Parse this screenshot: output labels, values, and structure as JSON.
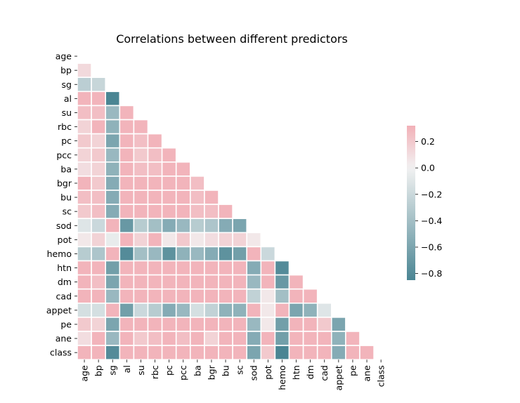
{
  "chart_data": {
    "type": "heatmap",
    "title": "Correlations between different predictors",
    "variables": [
      "age",
      "bp",
      "sg",
      "al",
      "su",
      "rbc",
      "pc",
      "pcc",
      "ba",
      "bgr",
      "bu",
      "sc",
      "sod",
      "pot",
      "hemo",
      "htn",
      "dm",
      "cad",
      "appet",
      "pe",
      "ane",
      "class"
    ],
    "mask": "upper triangle including diagonal",
    "colormap": {
      "negative": "#4a8593",
      "zero": "#f2f2f2",
      "positive": "#f2b0b7"
    },
    "value_range": [
      -0.85,
      0.32
    ],
    "colorbar_ticks": [
      "0.2",
      "0.0",
      "−0.2",
      "−0.4",
      "−0.6",
      "−0.8"
    ],
    "colorbar_tick_values": [
      0.2,
      0.0,
      -0.2,
      -0.4,
      -0.6,
      -0.8
    ],
    "rows": [
      [],
      [
        0.12
      ],
      [
        -0.28,
        -0.22
      ],
      [
        0.3,
        0.3,
        -0.85
      ],
      [
        0.25,
        0.25,
        -0.45,
        0.3
      ],
      [
        0.15,
        0.3,
        -0.5,
        0.3,
        0.3
      ],
      [
        0.2,
        0.15,
        -0.6,
        0.3,
        0.25,
        0.3
      ],
      [
        0.15,
        0.2,
        -0.45,
        0.3,
        0.2,
        0.25,
        0.3
      ],
      [
        0.1,
        0.15,
        -0.5,
        0.3,
        0.25,
        0.25,
        0.3,
        0.3
      ],
      [
        0.3,
        0.2,
        -0.55,
        0.3,
        0.3,
        0.3,
        0.3,
        0.3,
        0.25
      ],
      [
        0.25,
        0.25,
        -0.55,
        0.3,
        0.3,
        0.3,
        0.3,
        0.3,
        0.25,
        0.3
      ],
      [
        0.2,
        0.25,
        -0.55,
        0.3,
        0.3,
        0.3,
        0.3,
        0.3,
        0.25,
        0.25,
        0.3
      ],
      [
        -0.1,
        -0.2,
        0.3,
        -0.7,
        -0.3,
        -0.4,
        -0.55,
        -0.45,
        -0.3,
        -0.35,
        -0.55,
        -0.6
      ],
      [
        0.05,
        0.15,
        -0.05,
        0.3,
        0.15,
        0.3,
        0.05,
        0.2,
        0.05,
        0.1,
        0.15,
        0.15,
        0.05
      ],
      [
        -0.3,
        -0.35,
        0.3,
        -0.8,
        -0.4,
        -0.45,
        -0.75,
        -0.5,
        -0.45,
        -0.55,
        -0.75,
        -0.65,
        0.3,
        -0.2
      ],
      [
        0.3,
        0.3,
        -0.65,
        0.3,
        0.3,
        0.3,
        0.3,
        0.3,
        0.3,
        0.3,
        0.3,
        0.3,
        -0.55,
        0.3,
        -0.8
      ],
      [
        0.3,
        0.25,
        -0.6,
        0.3,
        0.3,
        0.3,
        0.3,
        0.3,
        0.3,
        0.3,
        0.3,
        0.3,
        -0.45,
        0.3,
        -0.7,
        0.3
      ],
      [
        0.3,
        0.3,
        -0.45,
        0.3,
        0.3,
        0.3,
        0.3,
        0.3,
        0.3,
        0.3,
        0.3,
        0.3,
        -0.25,
        0.05,
        -0.4,
        0.3,
        0.3
      ],
      [
        -0.15,
        -0.15,
        0.3,
        -0.65,
        -0.2,
        -0.3,
        -0.55,
        -0.45,
        -0.15,
        -0.25,
        -0.5,
        -0.5,
        0.3,
        0.05,
        0.3,
        -0.6,
        -0.5,
        -0.1
      ],
      [
        0.2,
        0.15,
        -0.6,
        0.3,
        0.3,
        0.3,
        0.3,
        0.3,
        0.3,
        0.3,
        0.3,
        0.3,
        -0.45,
        0.05,
        -0.65,
        0.3,
        0.3,
        0.2,
        -0.6
      ],
      [
        0.1,
        0.3,
        -0.45,
        0.3,
        0.2,
        0.25,
        0.3,
        0.25,
        0.3,
        0.15,
        0.3,
        0.3,
        -0.55,
        0.3,
        -0.65,
        0.3,
        0.3,
        0.3,
        -0.5,
        0.3
      ],
      [
        0.3,
        0.3,
        -0.8,
        0.3,
        0.3,
        0.3,
        0.3,
        0.3,
        0.3,
        0.3,
        0.3,
        0.3,
        -0.6,
        0.2,
        -0.85,
        0.3,
        0.3,
        0.3,
        -0.55,
        0.3,
        0.3
      ]
    ]
  }
}
